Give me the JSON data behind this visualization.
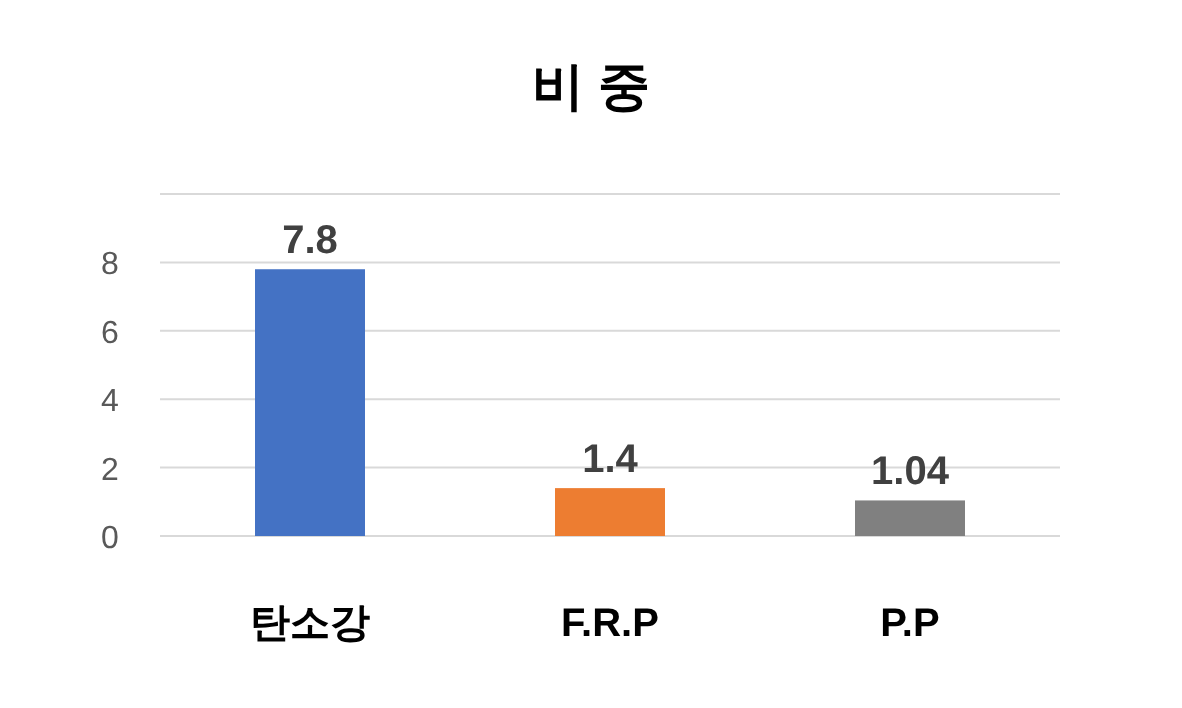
{
  "chart_data": {
    "type": "bar",
    "title": "비 중",
    "categories": [
      "탄소강",
      "F.R.P",
      "P.P"
    ],
    "values": [
      7.8,
      1.4,
      1.04
    ],
    "colors": [
      "#4472c4",
      "#ed7d31",
      "#808080"
    ],
    "ylim": [
      0,
      10
    ],
    "yticks": [
      0,
      2,
      4,
      6,
      8,
      {
        "value": 10,
        "label": null
      }
    ],
    "grid": "y",
    "data_labels": true
  }
}
